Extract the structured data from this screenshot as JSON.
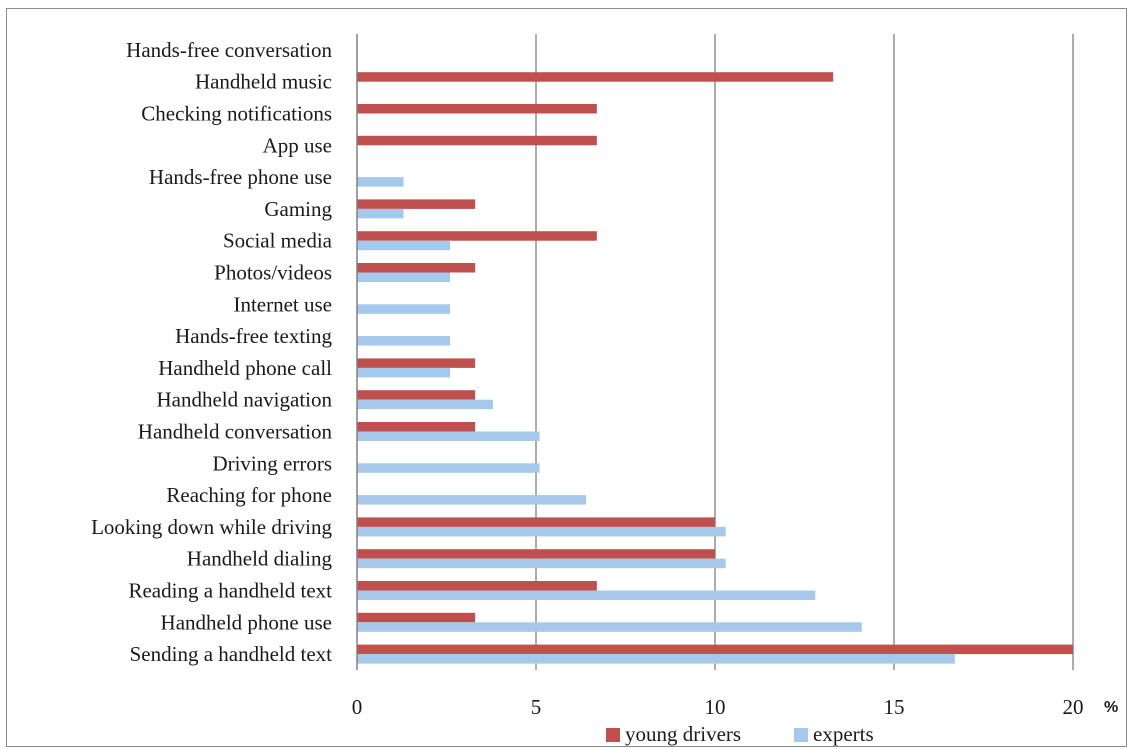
{
  "chart_data": {
    "type": "bar",
    "orientation": "horizontal",
    "categories": [
      "Hands-free conversation",
      "Handheld music",
      "Checking notifications",
      "App use",
      "Hands-free phone use",
      "Gaming",
      "Social media",
      "Photos/videos",
      "Internet use",
      "Hands-free texting",
      "Handheld phone call",
      "Handheld navigation",
      "Handheld conversation",
      "Driving errors",
      "Reaching for phone",
      "Looking down while driving",
      "Handheld dialing",
      "Reading a handheld text",
      "Handheld phone use",
      "Sending a handheld text"
    ],
    "series": [
      {
        "name": "young drivers",
        "color": "#c0504d",
        "values": [
          0,
          13.3,
          6.7,
          6.7,
          0,
          3.3,
          6.7,
          3.3,
          0,
          0,
          3.3,
          3.3,
          3.3,
          0,
          0,
          10,
          10,
          6.7,
          3.3,
          20
        ]
      },
      {
        "name": "experts",
        "color": "#a6c8ea",
        "values": [
          0,
          0,
          0,
          0,
          1.3,
          1.3,
          2.6,
          2.6,
          2.6,
          2.6,
          2.6,
          3.8,
          5.1,
          5.1,
          6.4,
          10.3,
          10.3,
          12.8,
          14.1,
          16.7
        ]
      }
    ],
    "xlim": [
      0,
      20
    ],
    "xticks": [
      "0",
      "5",
      "10",
      "15",
      "20"
    ],
    "xunit": "%",
    "grid": true,
    "legend_position": "bottom"
  }
}
